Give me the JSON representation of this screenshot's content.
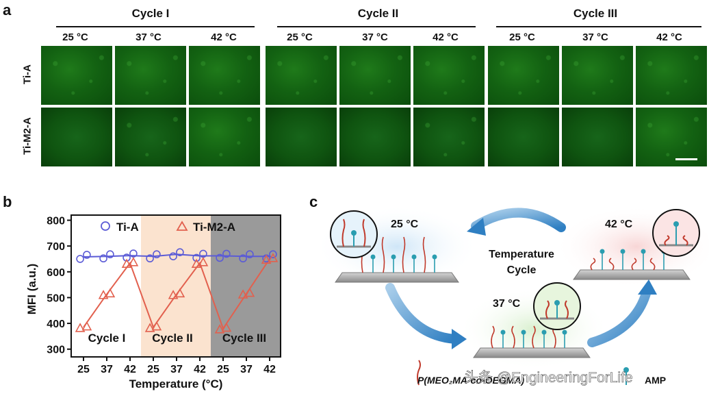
{
  "panel_a": {
    "letter": "a",
    "cycles": [
      "Cycle I",
      "Cycle II",
      "Cycle III"
    ],
    "temps": [
      "25 °C",
      "37 °C",
      "42 °C"
    ],
    "rows": [
      "Ti-A",
      "Ti-M2-A"
    ]
  },
  "panel_b": {
    "letter": "b",
    "ylabel": "MFI (a.u.)",
    "xlabel": "Temperature (°C)",
    "legend": [
      "Ti-A",
      "Ti-M2-A"
    ],
    "cycle_labels": [
      "Cycle I",
      "Cycle II",
      "Cycle III"
    ],
    "y_ticks": [
      "300",
      "400",
      "500",
      "600",
      "700",
      "800"
    ],
    "x_ticks": [
      "25",
      "37",
      "42",
      "25",
      "37",
      "42",
      "25",
      "37",
      "42"
    ]
  },
  "panel_c": {
    "letter": "c",
    "temp_labels": [
      "25 °C",
      "37 °C",
      "42 °C"
    ],
    "cycle_text": [
      "Temperature",
      "Cycle"
    ],
    "legend_polymer": "P(MEO₂MA-co-OEGMA)",
    "legend_amp": "AMP",
    "watermark": "头条 @EngineeringForLife"
  },
  "colors": {
    "ti_a": "#5b5bd6",
    "ti_m2_a": "#e2604e",
    "band_orange": "#fbe3cf",
    "band_gray": "#9a9a9a",
    "arrow_blue": "#2f7fc2"
  },
  "chart_data": {
    "type": "scatter",
    "title": "",
    "xlabel": "Temperature (°C)",
    "ylabel": "MFI (a.u.)",
    "ylim": [
      270,
      820
    ],
    "categories": [
      "25",
      "37",
      "42",
      "25",
      "37",
      "42",
      "25",
      "37",
      "42"
    ],
    "series": [
      {
        "name": "Ti-A",
        "marker": "circle",
        "values": [
          658,
          660,
          663,
          660,
          668,
          662,
          662,
          660,
          660
        ]
      },
      {
        "name": "Ti-M2-A",
        "marker": "triangle",
        "values": [
          385,
          513,
          634,
          385,
          513,
          634,
          380,
          515,
          650
        ]
      }
    ],
    "background_bands": [
      "white",
      "orange",
      "gray"
    ],
    "legend_position": "top"
  }
}
